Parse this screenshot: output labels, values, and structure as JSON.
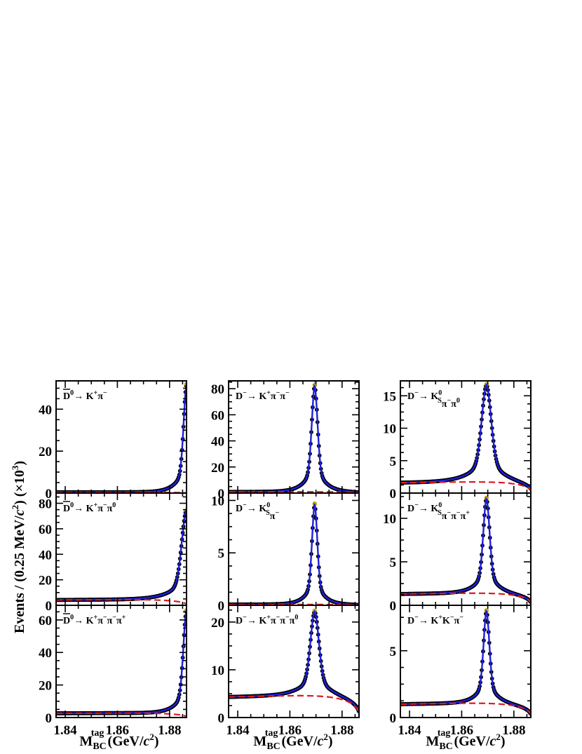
{
  "y_axis_title": {
    "prefix": "Events / (0.25 MeV/",
    "c": "c",
    "sup2": "2",
    "mid": ")  (×10",
    "sup3": "3",
    "suffix": ")"
  },
  "x_axis_title": {
    "main": "M",
    "sub": "BC",
    "sup": "tag",
    "unit_prefix": " (GeV/",
    "c": "c",
    "sup2": "2",
    "unit_suffix": ")"
  },
  "x_tick_labels": [
    "1.84",
    "1.86",
    "1.88"
  ],
  "colors": {
    "data": "#000000",
    "fit": "#1f1fd8",
    "background": "#e0191e",
    "frame": "#000000"
  },
  "chart_data": [
    {
      "type": "line",
      "label": "D0 → K+π−",
      "label_html": [
        "D",
        "0",
        "→ K",
        "+",
        "π",
        "−"
      ],
      "ylim": [
        0,
        53.5
      ],
      "yticks": [
        0,
        20,
        40
      ],
      "peak_x": 1.8865,
      "peak": 43,
      "width": 0.0011,
      "tail": 0.0005,
      "bkg_level": 0.4,
      "bkg_end": 0.0,
      "col": 0,
      "row": 0
    },
    {
      "type": "line",
      "label": "D0 → K+π−π0",
      "label_html": [
        "D",
        "0",
        "→ K",
        "+",
        "π",
        "−",
        "π",
        "0"
      ],
      "ylim": [
        0,
        88
      ],
      "yticks": [
        0,
        20,
        40,
        60,
        80
      ],
      "peak_x": 1.8865,
      "peak": 65,
      "width": 0.0018,
      "tail": 0.0008,
      "bkg_level": 4.2,
      "bkg_end": 0.5,
      "col": 0,
      "row": 1
    },
    {
      "type": "line",
      "label": "D0 → K+π−π−π+",
      "label_html": [
        "D",
        "0",
        "→ K",
        "+",
        "π",
        "−",
        "π",
        "−",
        "π",
        "+"
      ],
      "ylim": [
        0,
        69
      ],
      "yticks": [
        0,
        20,
        40,
        60
      ],
      "peak_x": 1.8865,
      "peak": 57,
      "width": 0.0012,
      "tail": 0.0005,
      "bkg_level": 2.6,
      "bkg_end": 0.3,
      "col": 0,
      "row": 2
    },
    {
      "type": "line",
      "label": "D− → K+π−π−",
      "label_html": [
        "D",
        "−",
        "→ K",
        "+",
        "π",
        "−",
        "π",
        "−"
      ],
      "ylim": [
        0,
        86
      ],
      "yticks": [
        0,
        20,
        40,
        60,
        80
      ],
      "peak_x": 1.8695,
      "peak": 68,
      "width": 0.0011,
      "tail": 0.0005,
      "bkg_level": 0.9,
      "bkg_end": 0.1,
      "col": 1,
      "row": 0
    },
    {
      "type": "line",
      "label": "D− → KS0π−",
      "label_html": [
        "D",
        "−",
        "→ K",
        "S0",
        "π",
        "−"
      ],
      "ylim": [
        0,
        10.7
      ],
      "yticks": [
        0,
        5,
        10
      ],
      "peak_x": 1.8695,
      "peak": 8.1,
      "width": 0.001,
      "tail": 0.0004,
      "bkg_level": 0.08,
      "bkg_end": 0.0,
      "col": 1,
      "row": 1
    },
    {
      "type": "line",
      "label": "D− → K+π−π−π0",
      "label_html": [
        "D",
        "−",
        "→ K",
        "+",
        "π",
        "−",
        "π",
        "−",
        "π",
        "0"
      ],
      "ylim": [
        0,
        23.5
      ],
      "yticks": [
        0,
        10,
        20
      ],
      "peak_x": 1.8695,
      "peak": 19,
      "width": 0.0016,
      "tail": 0.0007,
      "bkg_level": 4.3,
      "bkg_end": 0.6,
      "col": 1,
      "row": 2
    },
    {
      "type": "line",
      "label": "D− → KS0π−π0",
      "label_html": [
        "D",
        "−",
        "→ K",
        "S0",
        "π",
        "−",
        "π",
        "0"
      ],
      "ylim": [
        0,
        17.3
      ],
      "yticks": [
        0,
        5,
        10,
        15
      ],
      "peak_x": 1.8695,
      "peak": 14,
      "width": 0.0018,
      "tail": 0.0008,
      "bkg_level": 1.6,
      "bkg_end": 0.25,
      "col": 2,
      "row": 0
    },
    {
      "type": "line",
      "label": "D− → KS0π−π−π+",
      "label_html": [
        "D",
        "−",
        "→ K",
        "S0",
        "π",
        "−",
        "π",
        "−",
        "π",
        "+"
      ],
      "ylim": [
        0,
        12.9
      ],
      "yticks": [
        0,
        5,
        10
      ],
      "peak_x": 1.8695,
      "peak": 10.4,
      "width": 0.0012,
      "tail": 0.0005,
      "bkg_level": 1.3,
      "bkg_end": 0.2,
      "col": 2,
      "row": 1
    },
    {
      "type": "line",
      "label": "D− → K+K−π−",
      "label_html": [
        "D",
        "−",
        "→ K",
        "+",
        "K",
        "−",
        "π",
        "−"
      ],
      "ylim": [
        0,
        8.4
      ],
      "yticks": [
        0,
        5
      ],
      "peak_x": 1.8695,
      "peak": 6.7,
      "width": 0.0011,
      "tail": 0.0005,
      "bkg_level": 1.0,
      "bkg_end": 0.15,
      "col": 2,
      "row": 2
    }
  ],
  "xlim": [
    1.8365,
    1.8865
  ],
  "xticks": [
    1.84,
    1.86,
    1.88
  ]
}
